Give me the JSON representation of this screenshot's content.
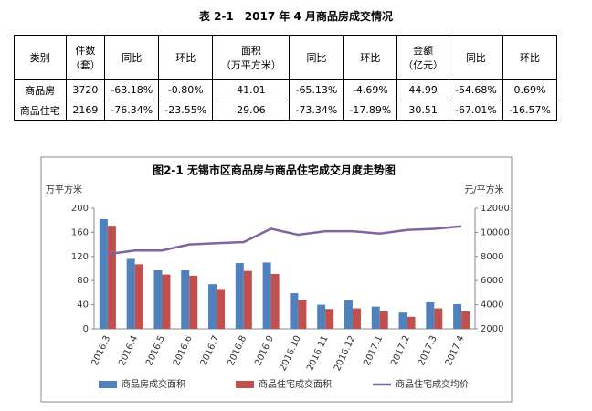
{
  "table": {
    "title": "表 2-1　2017 年 4 月商品房成交情况",
    "header": [
      [
        "类别"
      ],
      [
        "件数",
        "（套）"
      ],
      [
        "同比"
      ],
      [
        "环比"
      ],
      [
        "面积",
        "（万平方米）"
      ],
      [
        "同比"
      ],
      [
        "环比"
      ],
      [
        "金额",
        "（亿元）"
      ],
      [
        "同比"
      ],
      [
        "环比"
      ]
    ],
    "rows": [
      [
        "商品房",
        "3720",
        "-63.18%",
        "-0.80%",
        "41.01",
        "-65.13%",
        "-4.69%",
        "44.99",
        "-54.68%",
        "0.69%"
      ],
      [
        "商品住宅",
        "2169",
        "-76.34%",
        "-23.55%",
        "29.06",
        "-73.34%",
        "-17.89%",
        "30.51",
        "-67.01%",
        "-16.57%"
      ]
    ]
  },
  "chart_data": {
    "type": "bar",
    "title": "图2-1 无锡市区商品房与商品住宅成交月度走势图",
    "y_label": "万平方米",
    "y2_label": "元/平方米",
    "categories": [
      "2016.3",
      "2016.4",
      "2016.5",
      "2016.6",
      "2016.7",
      "2016.8",
      "2016.9",
      "2016.10",
      "2016.11",
      "2016.12",
      "2017.1",
      "2017.2",
      "2017.3",
      "2017.4"
    ],
    "series": [
      {
        "name": "商品房成交面积",
        "type": "bar",
        "color": "#4f81bd",
        "values": [
          182,
          116,
          97,
          97,
          74,
          109,
          110,
          59,
          40,
          48,
          37,
          27,
          44,
          41
        ]
      },
      {
        "name": "商品住宅成交面积",
        "type": "bar",
        "color": "#c0504d",
        "values": [
          171,
          107,
          90,
          88,
          66,
          96,
          91,
          48,
          33,
          34,
          29,
          20,
          34,
          29
        ]
      },
      {
        "name": "商品住宅成交均价",
        "type": "line",
        "axis": "y2",
        "color": "#8064a2",
        "values": [
          8200,
          8500,
          8500,
          9000,
          9100,
          9200,
          10300,
          9800,
          10100,
          10100,
          9900,
          10200,
          10300,
          10500
        ]
      }
    ],
    "ylim": [
      0,
      200
    ],
    "yticks": [
      0,
      40,
      80,
      120,
      160,
      200
    ],
    "y2lim": [
      2000,
      12000
    ],
    "y2ticks": [
      2000,
      4000,
      6000,
      8000,
      10000,
      12000
    ],
    "grid": false,
    "legend": "bottom"
  }
}
